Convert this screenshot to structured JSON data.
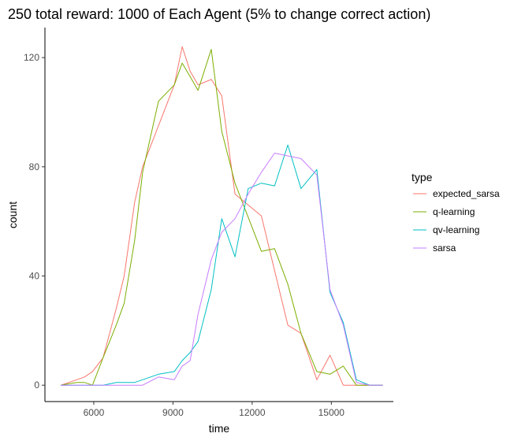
{
  "chart_data": {
    "type": "line",
    "title": "250 total reward: 1000 of Each Agent (5% to change correct action)",
    "xlabel": "time",
    "ylabel": "count",
    "xlim": [
      4150,
      17350
    ],
    "ylim": [
      -6,
      131
    ],
    "x_ticks": [
      6000,
      9000,
      12000,
      15000
    ],
    "y_ticks": [
      0,
      40,
      80,
      120
    ],
    "grid": false,
    "legend_title": "type",
    "legend_position": "right",
    "series": [
      {
        "name": "expected_sarsa",
        "color": "#F8766D",
        "x": [
          4750,
          5350,
          5650,
          5950,
          6350,
          6850,
          7150,
          7550,
          7850,
          8450,
          9050,
          9350,
          9650,
          9950,
          10450,
          10850,
          11350,
          12350,
          12850,
          13350,
          13850,
          14450,
          14950,
          15450,
          15950,
          16450,
          16950
        ],
        "values": [
          0,
          2,
          3,
          5,
          10,
          28,
          40,
          67,
          80,
          95,
          110,
          124,
          115,
          110,
          112,
          106,
          70,
          62,
          42,
          22,
          19,
          2,
          11,
          0,
          0,
          0,
          0
        ]
      },
      {
        "name": "q-learning",
        "color": "#7CAE00",
        "x": [
          4750,
          5350,
          5650,
          5950,
          6350,
          6850,
          7150,
          7550,
          7850,
          8450,
          9050,
          9350,
          9650,
          9950,
          10450,
          10850,
          11350,
          12350,
          12850,
          13350,
          13850,
          14450,
          14950,
          15450,
          15950,
          16450,
          16950
        ],
        "values": [
          0,
          1,
          1,
          0,
          10,
          22,
          30,
          53,
          78,
          104,
          110,
          118,
          113,
          108,
          123,
          93,
          74,
          49,
          50,
          37,
          19,
          5,
          4,
          7,
          0,
          0,
          0
        ]
      },
      {
        "name": "qv-learning",
        "color": "#00BFC4",
        "x": [
          4750,
          5350,
          5650,
          5950,
          6350,
          6850,
          7150,
          7550,
          7850,
          8450,
          9050,
          9350,
          9650,
          9950,
          10450,
          10850,
          11350,
          11850,
          12350,
          12850,
          13350,
          13850,
          14450,
          14950,
          15450,
          15950,
          16450,
          16950
        ],
        "values": [
          0,
          0,
          0,
          0,
          0,
          1,
          1,
          1,
          2,
          4,
          5,
          9,
          12,
          16,
          35,
          61,
          47,
          72,
          74,
          73,
          88,
          72,
          79,
          34,
          23,
          2,
          0,
          0
        ]
      },
      {
        "name": "sarsa",
        "color": "#C77CFF",
        "x": [
          4750,
          5350,
          5650,
          5950,
          6350,
          6850,
          7150,
          7550,
          7850,
          8450,
          9050,
          9350,
          9650,
          9950,
          10450,
          10850,
          11350,
          11850,
          12350,
          12850,
          13350,
          13850,
          14450,
          14950,
          15450,
          15950,
          16450,
          16950
        ],
        "values": [
          0,
          0,
          0,
          0,
          0,
          0,
          0,
          0,
          0,
          3,
          2,
          7,
          9,
          26,
          46,
          56,
          61,
          70,
          78,
          85,
          84,
          83,
          77,
          35,
          22,
          1,
          0,
          0
        ]
      }
    ]
  }
}
